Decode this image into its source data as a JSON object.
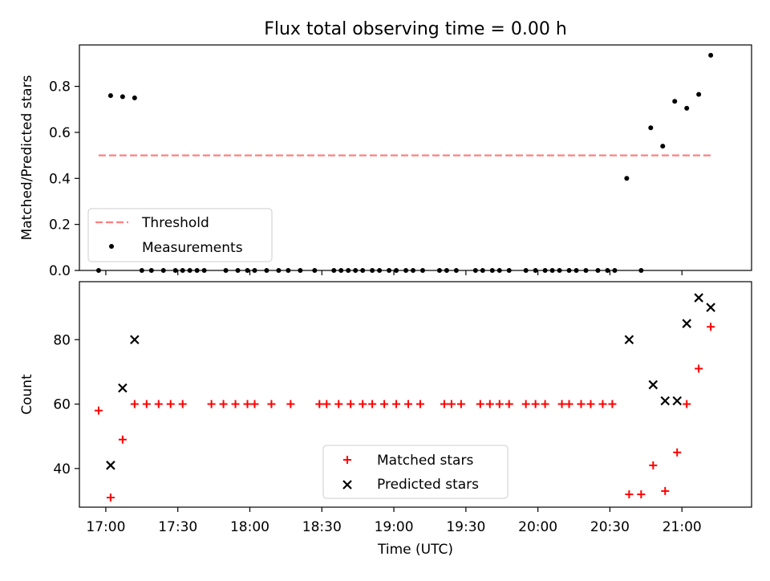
{
  "figure": {
    "title": "Flux total observing time = 0.00 h"
  },
  "colors": {
    "threshold": "#ff7f7f",
    "measurement": "#000000",
    "matched": "#ff0000",
    "predicted": "#000000"
  },
  "chart_data": [
    {
      "type": "scatter",
      "panel": "top",
      "ylabel": "Matched/Predicted stars",
      "xlim": [
        "16:49",
        "21:29"
      ],
      "ylim": [
        0,
        0.98
      ],
      "yticks": [
        0.0,
        0.2,
        0.4,
        0.6,
        0.8
      ],
      "ytick_labels": [
        "0.0",
        "0.2",
        "0.4",
        "0.6",
        "0.8"
      ],
      "legend_position": "lower left",
      "series": [
        {
          "name": "Threshold",
          "kind": "dashed-line",
          "x": [
            "16:57",
            "21:12"
          ],
          "y": [
            0.5,
            0.5
          ]
        },
        {
          "name": "Measurements",
          "kind": "scatter",
          "x": [
            "16:57",
            "17:02",
            "17:07",
            "17:12",
            "17:15",
            "17:19",
            "17:24",
            "17:29",
            "17:32",
            "17:35",
            "17:38",
            "17:41",
            "17:50",
            "17:55",
            "17:59",
            "18:02",
            "18:07",
            "18:12",
            "18:16",
            "18:21",
            "18:27",
            "18:35",
            "18:38",
            "18:41",
            "18:44",
            "18:47",
            "18:51",
            "18:54",
            "18:58",
            "19:01",
            "19:05",
            "19:08",
            "19:12",
            "19:19",
            "19:22",
            "19:26",
            "19:34",
            "19:37",
            "19:41",
            "19:44",
            "19:48",
            "19:55",
            "19:59",
            "20:03",
            "20:06",
            "20:09",
            "20:13",
            "20:16",
            "20:20",
            "20:25",
            "20:29",
            "20:32",
            "20:37",
            "20:43",
            "20:47",
            "20:52",
            "20:57",
            "21:02",
            "21:07",
            "21:12"
          ],
          "y": [
            0.0,
            0.76,
            0.755,
            0.75,
            0.0,
            0.0,
            0.0,
            0.0,
            0.0,
            0.0,
            0.0,
            0.0,
            0.0,
            0.0,
            0.0,
            0.0,
            0.0,
            0.0,
            0.0,
            0.0,
            0.0,
            0.0,
            0.0,
            0.0,
            0.0,
            0.0,
            0.0,
            0.0,
            0.0,
            0.0,
            0.0,
            0.0,
            0.0,
            0.0,
            0.0,
            0.0,
            0.0,
            0.0,
            0.0,
            0.0,
            0.0,
            0.0,
            0.0,
            0.0,
            0.0,
            0.0,
            0.0,
            0.0,
            0.0,
            0.0,
            0.0,
            0.0,
            0.4,
            0.0,
            0.62,
            0.54,
            0.735,
            0.705,
            0.765,
            0.935
          ]
        }
      ]
    },
    {
      "type": "scatter",
      "panel": "bottom",
      "xlabel": "Time (UTC)",
      "ylabel": "Count",
      "xlim": [
        "16:49",
        "21:29"
      ],
      "ylim": [
        28,
        98
      ],
      "xticks": [
        "17:00",
        "17:30",
        "18:00",
        "18:30",
        "19:00",
        "19:30",
        "20:00",
        "20:30",
        "21:00"
      ],
      "yticks": [
        40,
        60,
        80
      ],
      "ytick_labels": [
        "40",
        "60",
        "80"
      ],
      "legend_position": "lower center",
      "series": [
        {
          "name": "Matched stars",
          "kind": "plus",
          "x": [
            "16:57",
            "17:02",
            "17:07",
            "17:12",
            "17:17",
            "17:22",
            "17:27",
            "17:32",
            "17:44",
            "17:49",
            "17:54",
            "17:59",
            "18:02",
            "18:09",
            "18:17",
            "18:29",
            "18:32",
            "18:37",
            "18:42",
            "18:47",
            "18:51",
            "18:56",
            "19:01",
            "19:06",
            "19:11",
            "19:21",
            "19:24",
            "19:28",
            "19:36",
            "19:40",
            "19:44",
            "19:48",
            "19:55",
            "19:59",
            "20:03",
            "20:10",
            "20:13",
            "20:18",
            "20:22",
            "20:27",
            "20:31",
            "20:38",
            "20:43",
            "20:48",
            "20:53",
            "20:58",
            "21:02",
            "21:07",
            "21:12"
          ],
          "y": [
            58,
            31,
            49,
            60,
            60,
            60,
            60,
            60,
            60,
            60,
            60,
            60,
            60,
            60,
            60,
            60,
            60,
            60,
            60,
            60,
            60,
            60,
            60,
            60,
            60,
            60,
            60,
            60,
            60,
            60,
            60,
            60,
            60,
            60,
            60,
            60,
            60,
            60,
            60,
            60,
            60,
            32,
            32,
            41,
            33,
            45,
            60,
            71,
            84
          ]
        },
        {
          "name": "Predicted stars",
          "kind": "x",
          "x": [
            "17:02",
            "17:07",
            "17:12",
            "20:38",
            "20:48",
            "20:53",
            "20:58",
            "21:02",
            "21:07",
            "21:12"
          ],
          "y": [
            41,
            65,
            80,
            80,
            66,
            61,
            61,
            85,
            93,
            90
          ]
        }
      ]
    }
  ]
}
